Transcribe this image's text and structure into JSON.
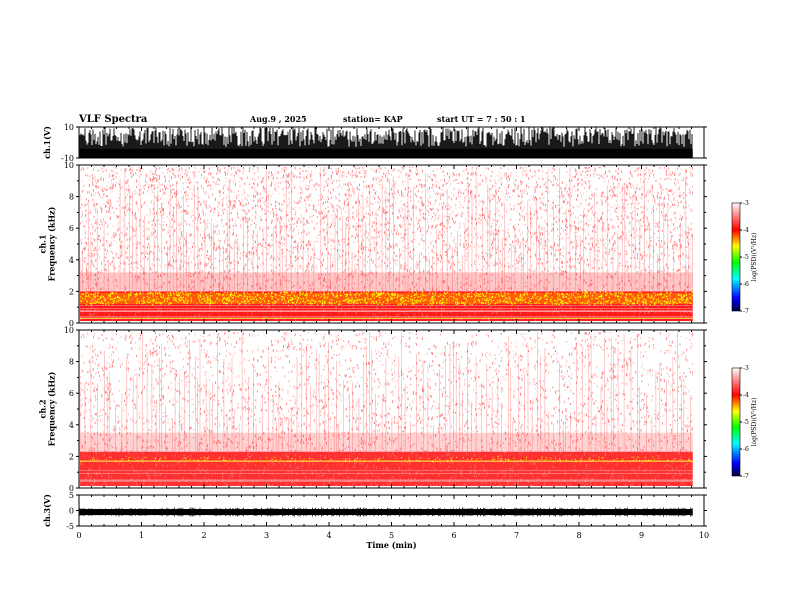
{
  "header": {
    "title": "VLF  Spectra",
    "date": "Aug.9   , 2025",
    "station": "station= KAP",
    "start": "start  UT  =   7 : 50 : 1"
  },
  "chart_data": [
    {
      "id": "ch1-waveform",
      "type": "line",
      "ylabel": "ch.1(V)",
      "ylim": [
        -10,
        10
      ],
      "yticks": [
        "10",
        "-10"
      ],
      "xlim": [
        0,
        10
      ],
      "data_end": 9.82,
      "description_values": {
        "baseline": -8,
        "burst_peak": 10
      }
    },
    {
      "id": "ch1-spectrogram",
      "type": "heatmap",
      "ylabel": "ch.1\nFrequency  (kHz)",
      "ylabel_lines": [
        "ch.1",
        "Frequency  (kHz)"
      ],
      "ylim": [
        0,
        10
      ],
      "yticks": [
        "0",
        "2",
        "4",
        "6",
        "8",
        "10"
      ],
      "xlim": [
        0,
        10
      ],
      "data_end": 9.82,
      "bands_khz": [
        {
          "from": 1.2,
          "to": 2.0,
          "level": "high"
        },
        {
          "from": 0.0,
          "to": 1.2,
          "level": "medium"
        }
      ],
      "colorbar": {
        "label": "log(PSD)(V²/Hz)",
        "range": [
          -7,
          -3
        ],
        "ticks": [
          "-3",
          "-4",
          "-5",
          "-6",
          "-7"
        ]
      }
    },
    {
      "id": "ch2-spectrogram",
      "type": "heatmap",
      "ylabel": "ch.2\nFrequency  (kHz)",
      "ylabel_lines": [
        "ch.2",
        "Frequency  (kHz)"
      ],
      "ylim": [
        0,
        10
      ],
      "yticks": [
        "0",
        "2",
        "4",
        "6",
        "8",
        "10"
      ],
      "xlim": [
        0,
        10
      ],
      "data_end": 9.82,
      "bands_khz": [
        {
          "from": 1.7,
          "to": 1.7,
          "level": "line"
        },
        {
          "from": 0.0,
          "to": 2.2,
          "level": "medium"
        }
      ],
      "colorbar": {
        "label": "log(PSD)(V²/Hz)",
        "range": [
          -7,
          -3
        ],
        "ticks": [
          "-3",
          "-4",
          "-5",
          "-6",
          "-7"
        ]
      }
    },
    {
      "id": "ch3-waveform",
      "type": "line",
      "ylabel": "ch.3(V)",
      "ylim": [
        -5,
        5
      ],
      "yticks": [
        "5",
        "0",
        "-5"
      ],
      "xlim": [
        0,
        10
      ],
      "data_end": 9.82,
      "description_values": {
        "baseline": -0.5
      }
    }
  ],
  "xaxis": {
    "label": "Time  (min)",
    "ticks": [
      "0",
      "1",
      "2",
      "3",
      "4",
      "5",
      "6",
      "7",
      "8",
      "9",
      "10"
    ],
    "range": [
      0,
      10
    ]
  },
  "colors": {
    "spectral_high": "#ffff00",
    "spectral_mid": "#ff0000",
    "spectral_low": "#ffb0b0",
    "background": "#ffffff"
  }
}
